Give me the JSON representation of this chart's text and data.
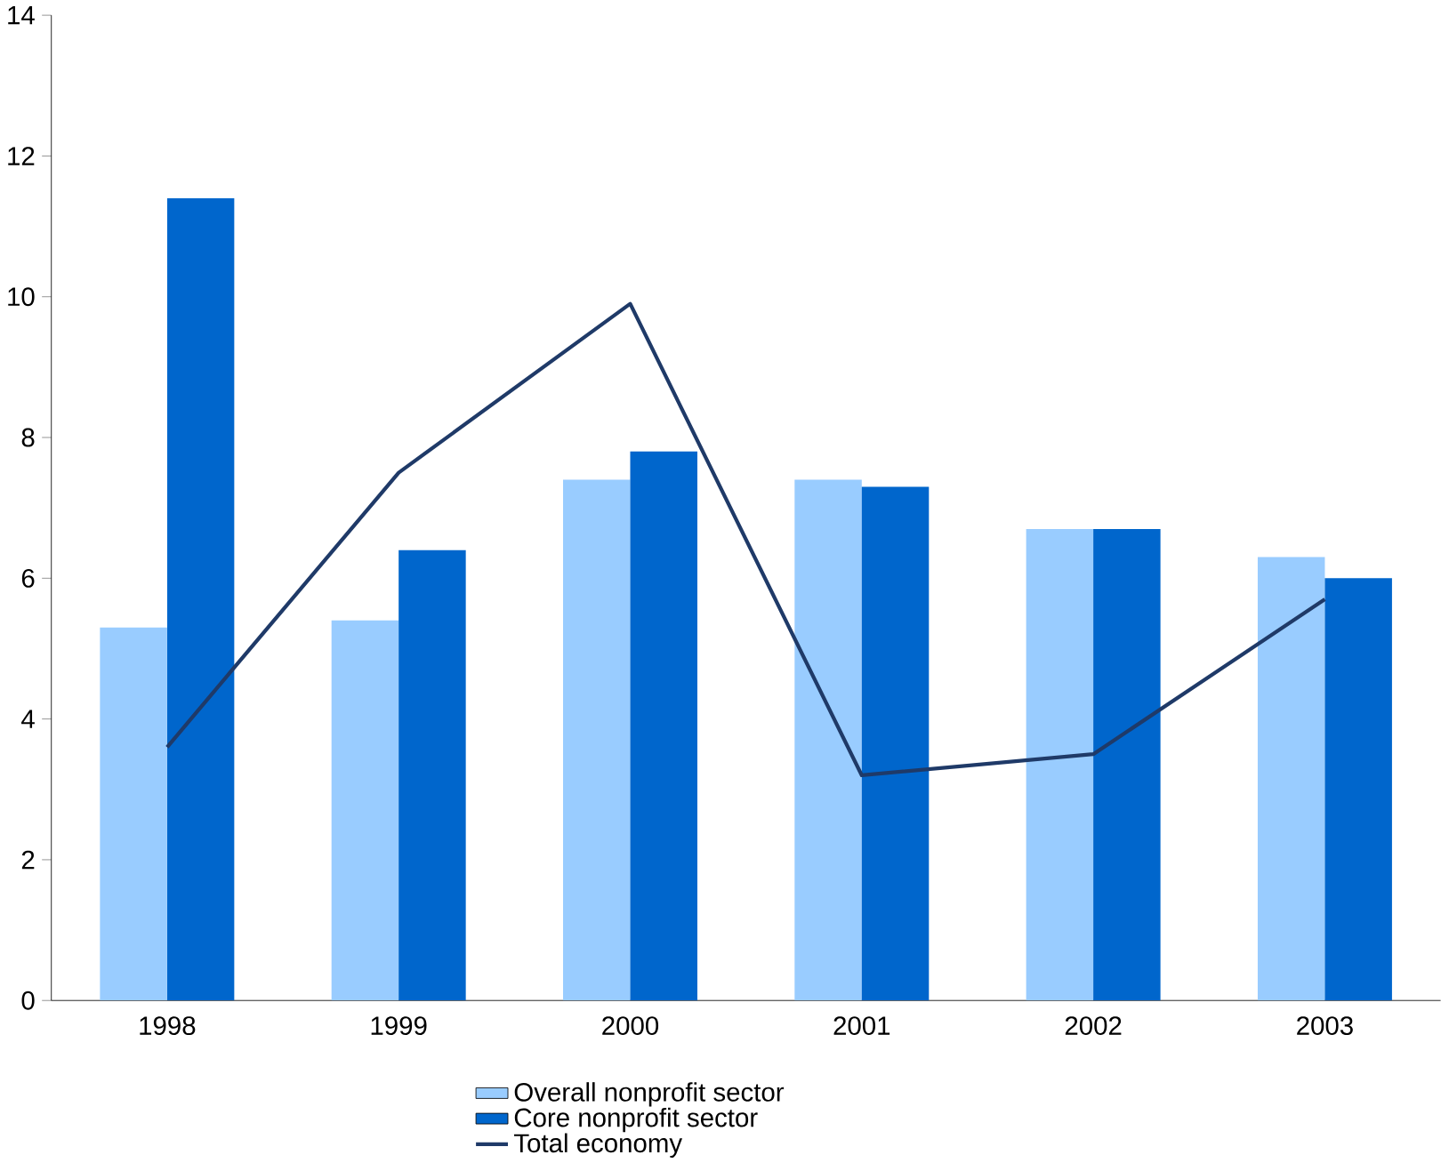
{
  "chart_data": {
    "type": "bar",
    "categories": [
      "1998",
      "1999",
      "2000",
      "2001",
      "2002",
      "2003"
    ],
    "series": [
      {
        "name": "Overall nonprofit sector",
        "color": "#99ccff",
        "values": [
          5.3,
          5.4,
          7.4,
          7.4,
          6.7,
          6.3
        ]
      },
      {
        "name": "Core nonprofit sector",
        "color": "#0066cc",
        "values": [
          11.4,
          6.4,
          7.8,
          7.3,
          6.7,
          6.0
        ]
      },
      {
        "name": "Total economy",
        "color": "#1f3a68",
        "type": "line",
        "values": [
          3.6,
          7.5,
          9.9,
          3.2,
          3.5,
          5.7
        ]
      }
    ],
    "ylim": [
      0,
      14
    ],
    "yticks": [
      0,
      2,
      4,
      6,
      8,
      10,
      12,
      14
    ],
    "legend": "bottom",
    "grid": false
  }
}
